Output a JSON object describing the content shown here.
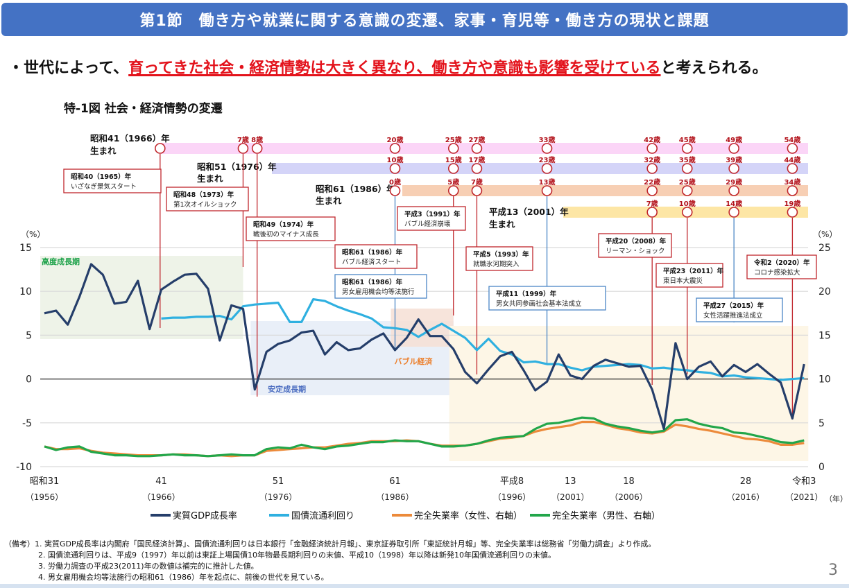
{
  "header": {
    "title": "第1節　働き方や就業に関する意識の変遷、家事・育児等・働き方の現状と課題"
  },
  "lead": {
    "prefix": "・世代によって、",
    "emphasis": "育ってきた社会・経済情勢は大きく異なり、働き方や意識も影響を受けている",
    "suffix": "と考えられる。"
  },
  "figure_title": "特-1図 社会・経済情勢の変遷",
  "page_number": "3",
  "notes": [
    "（備考）1. 実質GDP成長率は内閣府「国民経済計算」、国債流通利回りは日本銀行「金融経済統計月報」、東京証券取引所「東証統計月報」等、完全失業率は総務省「労働力調査」より作成。",
    "2. 国債流通利回りは、平成9（1997）年以前は東証上場国債10年物最長期利回りの末値、平成10（1998）年以降は新発10年国債流通利回りの末値。",
    "3. 労働力調査の平成23(2011)年の数値は補完的に推計した値。",
    "4. 男女雇用機会均等法施行の昭和61（1986）年を起点に、前後の世代を見ている。"
  ],
  "colors": {
    "header": "#4472c4",
    "gdp": "#253e6a",
    "bond": "#2fb0e0",
    "unemp_f": "#ec8a3a",
    "unemp_m": "#22a64a",
    "event_red": "#c0272d",
    "event_blue": "#4a86c5",
    "age_text": "#b3121b"
  },
  "chart_data": {
    "type": "line",
    "title": "特-1図 社会・経済情勢の変遷",
    "left_axis": {
      "unit": "（%）",
      "ylim": [
        -10,
        15
      ],
      "ticks": [
        "15",
        "10",
        "5",
        "0",
        "-5",
        "-10"
      ]
    },
    "right_axis": {
      "unit": "（%）",
      "ylim": [
        0,
        25
      ],
      "ticks": [
        "25",
        "20",
        "15",
        "10",
        "5",
        "0"
      ]
    },
    "x_unit": "（年）",
    "x_ticks": [
      {
        "year": 1956,
        "era": "昭和31",
        "label": "（1956）"
      },
      {
        "year": 1966,
        "era": "41",
        "label": "（1966）"
      },
      {
        "year": 1976,
        "era": "51",
        "label": "（1976）"
      },
      {
        "year": 1986,
        "era": "61",
        "label": "（1986）"
      },
      {
        "year": 1996,
        "era": "平成8",
        "label": "（1996）"
      },
      {
        "year": 2001,
        "era": "13",
        "label": "（2001）"
      },
      {
        "year": 2006,
        "era": "18",
        "label": "（2006）"
      },
      {
        "year": 2016,
        "era": "28",
        "label": "（2016）"
      },
      {
        "year": 2021,
        "era": "令和3",
        "label": "（2021）"
      }
    ],
    "legend": {
      "placement": "bottom",
      "entries": [
        "実質GDP成長率",
        "国債流通利回り",
        "完全失業率（女性、右軸）",
        "完全失業率（男性、右軸）"
      ]
    },
    "series": [
      {
        "name": "実質GDP成長率",
        "axis": "left",
        "start_year": 1956,
        "values": [
          7.5,
          7.8,
          6.2,
          9.4,
          13.1,
          11.9,
          8.6,
          8.8,
          11.2,
          5.7,
          10.2,
          11.1,
          11.9,
          12.0,
          10.3,
          4.4,
          8.4,
          8.0,
          -1.2,
          3.1,
          4.0,
          4.4,
          5.3,
          5.5,
          2.8,
          4.2,
          3.3,
          3.5,
          4.5,
          5.2,
          3.3,
          4.7,
          6.8,
          4.9,
          4.9,
          3.4,
          0.8,
          -0.5,
          1.1,
          2.6,
          3.1,
          1.0,
          -1.3,
          -0.3,
          2.8,
          0.4,
          0.0,
          1.5,
          2.2,
          1.8,
          1.4,
          1.5,
          -1.2,
          -5.7,
          4.1,
          0.0,
          1.4,
          2.0,
          0.3,
          1.6,
          0.8,
          1.7,
          0.6,
          -0.4,
          -4.5,
          1.7
        ]
      },
      {
        "name": "国債流通利回り",
        "axis": "right",
        "start_year": 1966,
        "values": [
          16.9,
          17.0,
          17.0,
          17.1,
          17.1,
          17.2,
          16.8,
          18.3,
          18.5,
          18.6,
          18.7,
          16.5,
          16.5,
          19.1,
          18.9,
          18.3,
          17.8,
          17.4,
          16.9,
          15.9,
          15.8,
          15.6,
          14.8,
          15.6,
          16.3,
          15.5,
          14.7,
          13.3,
          14.6,
          13.2,
          12.8,
          11.9,
          12.0,
          11.7,
          11.7,
          11.3,
          11.0,
          11.4,
          11.5,
          11.6,
          11.7,
          11.6,
          11.2,
          11.3,
          11.1,
          11.0,
          10.8,
          10.7,
          10.3,
          10.4,
          10.2,
          10.1,
          10.0,
          9.9,
          10.0,
          10.1
        ]
      },
      {
        "name": "完全失業率（女性、右軸）",
        "axis": "right",
        "start_year": 1956,
        "values": [
          2.3,
          2.0,
          2.0,
          2.1,
          1.8,
          1.6,
          1.5,
          1.4,
          1.3,
          1.3,
          1.3,
          1.4,
          1.4,
          1.3,
          1.2,
          1.3,
          1.2,
          1.3,
          1.3,
          1.8,
          1.9,
          2.0,
          2.1,
          2.2,
          2.2,
          2.4,
          2.6,
          2.7,
          2.9,
          2.9,
          2.9,
          3.0,
          2.9,
          2.6,
          2.4,
          2.4,
          2.4,
          2.6,
          2.9,
          3.2,
          3.3,
          3.5,
          4.0,
          4.3,
          4.5,
          4.7,
          5.1,
          5.1,
          4.8,
          4.4,
          4.2,
          3.9,
          3.8,
          4.0,
          4.8,
          4.6,
          4.3,
          4.1,
          3.8,
          3.5,
          3.2,
          3.1,
          2.9,
          2.5,
          2.5,
          2.7
        ]
      },
      {
        "name": "完全失業率（男性、右軸）",
        "axis": "right",
        "start_year": 1956,
        "values": [
          2.3,
          1.9,
          2.2,
          2.3,
          1.7,
          1.5,
          1.3,
          1.3,
          1.2,
          1.2,
          1.3,
          1.4,
          1.3,
          1.3,
          1.2,
          1.3,
          1.4,
          1.3,
          1.3,
          2.0,
          2.2,
          2.1,
          2.5,
          2.2,
          2.0,
          2.3,
          2.4,
          2.6,
          2.8,
          2.8,
          3.0,
          2.9,
          2.9,
          2.6,
          2.3,
          2.3,
          2.4,
          2.6,
          3.0,
          3.3,
          3.4,
          3.5,
          4.3,
          4.9,
          5.0,
          5.3,
          5.6,
          5.5,
          4.9,
          4.6,
          4.4,
          4.1,
          3.9,
          4.1,
          5.3,
          5.4,
          4.9,
          4.6,
          4.4,
          3.9,
          3.8,
          3.5,
          3.2,
          2.8,
          2.7,
          3.0
        ]
      }
    ],
    "periods": [
      {
        "label": "高度成長期",
        "from": 1956,
        "to": 1973
      },
      {
        "label": "安定成長期",
        "from": 1974,
        "to": 1991
      },
      {
        "label": "バブル経済",
        "from": 1986,
        "to": 1991
      },
      {
        "label": "",
        "from": 1991,
        "to": 2021
      }
    ],
    "cohorts": [
      {
        "label1": "昭和41（1966）年",
        "label2": "生まれ",
        "from": 1966,
        "ages": [
          {
            "year": 1966,
            "age": ""
          },
          {
            "year": 1973,
            "age": "7歳"
          },
          {
            "year": 1974,
            "age": "8歳"
          },
          {
            "year": 1986,
            "age": "20歳"
          },
          {
            "year": 1991,
            "age": "25歳"
          },
          {
            "year": 1993,
            "age": "27歳"
          },
          {
            "year": 1999,
            "age": "33歳"
          },
          {
            "year": 2008,
            "age": "42歳"
          },
          {
            "year": 2011,
            "age": "45歳"
          },
          {
            "year": 2015,
            "age": "49歳"
          },
          {
            "year": 2020,
            "age": "54歳"
          }
        ]
      },
      {
        "label1": "昭和51（1976）年",
        "label2": "生まれ",
        "from": 1976,
        "ages": [
          {
            "year": 1986,
            "age": "10歳"
          },
          {
            "year": 1991,
            "age": "15歳"
          },
          {
            "year": 1993,
            "age": "17歳"
          },
          {
            "year": 1999,
            "age": "23歳"
          },
          {
            "year": 2008,
            "age": "32歳"
          },
          {
            "year": 2011,
            "age": "35歳"
          },
          {
            "year": 2015,
            "age": "39歳"
          },
          {
            "year": 2020,
            "age": "44歳"
          }
        ]
      },
      {
        "label1": "昭和61（1986）年",
        "label2": "生まれ",
        "from": 1986,
        "ages": [
          {
            "year": 1986,
            "age": "0歳"
          },
          {
            "year": 1991,
            "age": "5歳"
          },
          {
            "year": 1993,
            "age": "7歳"
          },
          {
            "year": 1999,
            "age": "13歳"
          },
          {
            "year": 2008,
            "age": "22歳"
          },
          {
            "year": 2011,
            "age": "25歳"
          },
          {
            "year": 2015,
            "age": "29歳"
          },
          {
            "year": 2020,
            "age": "34歳"
          }
        ]
      },
      {
        "label1": "平成13（2001）年",
        "label2": "生まれ",
        "from": 2001,
        "ages": [
          {
            "year": 2008,
            "age": "7歳"
          },
          {
            "year": 2011,
            "age": "10歳"
          },
          {
            "year": 2015,
            "age": "14歳"
          },
          {
            "year": 2020,
            "age": "19歳"
          }
        ]
      }
    ],
    "events": [
      {
        "year": 1965,
        "title": "昭和40（1965）年",
        "text": "いざなぎ景気スタート",
        "kind": "red"
      },
      {
        "year": 1973,
        "title": "昭和48（1973）年",
        "text": "第1次オイルショック",
        "kind": "red"
      },
      {
        "year": 1974,
        "title": "昭和49（1974）年",
        "text": "戦後初のマイナス成長",
        "kind": "red"
      },
      {
        "year": 1986,
        "title": "昭和61（1986）年",
        "text": "バブル経済スタート",
        "kind": "red"
      },
      {
        "year": 1986,
        "title": "昭和61（1986）年",
        "text": "男女雇用機会均等法施行",
        "kind": "blue"
      },
      {
        "year": 1991,
        "title": "平成3（1991）年",
        "text": "バブル経済崩壊",
        "kind": "red"
      },
      {
        "year": 1993,
        "title": "平成5（1993）年",
        "text": "就職氷河期突入",
        "kind": "red"
      },
      {
        "year": 1999,
        "title": "平成11（1999）年",
        "text": "男女共同参画社会基本法成立",
        "kind": "blue"
      },
      {
        "year": 2008,
        "title": "平成20（2008）年",
        "text": "リーマン・ショック",
        "kind": "red"
      },
      {
        "year": 2011,
        "title": "平成23（2011）年",
        "text": "東日本大震災",
        "kind": "red"
      },
      {
        "year": 2015,
        "title": "平成27（2015）年",
        "text": "女性活躍推進法成立",
        "kind": "blue"
      },
      {
        "year": 2020,
        "title": "令和2（2020）年",
        "text": "コロナ感染拡大",
        "kind": "red"
      }
    ]
  }
}
